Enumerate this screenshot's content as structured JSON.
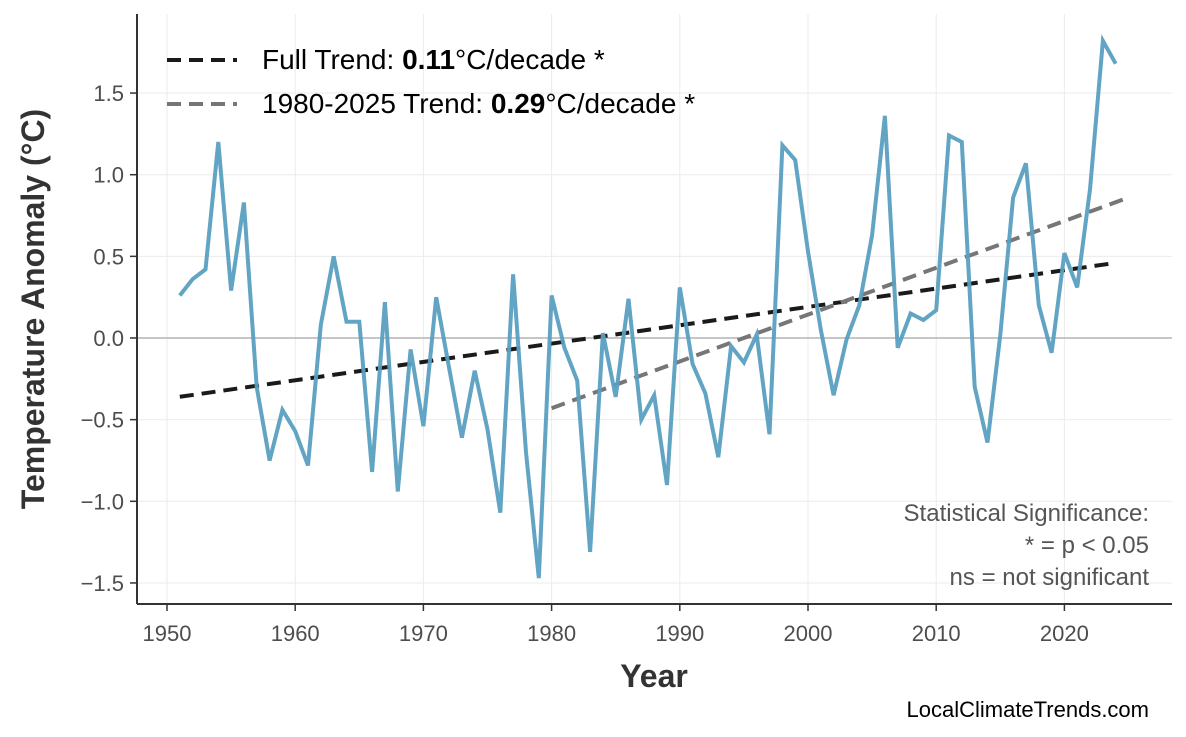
{
  "chart_data": {
    "type": "line",
    "xlabel": "Year",
    "ylabel": "Temperature Anomaly (°C)",
    "xlim": [
      1947,
      2029
    ],
    "ylim": [
      -1.63,
      2.0
    ],
    "xticks": [
      1950,
      1960,
      1970,
      1980,
      1990,
      2000,
      2010,
      2020
    ],
    "yticks": [
      -1.5,
      -1.0,
      -0.5,
      0.0,
      0.5,
      1.0,
      1.5
    ],
    "ytick_labels": [
      "−1.5",
      "−1.0",
      "−0.5",
      "0.0",
      "0.5",
      "1.0",
      "1.5"
    ],
    "grid": true,
    "zero_line": true,
    "series": [
      {
        "color": "#5a9fc0",
        "x": [
          1951,
          1952,
          1953,
          1954,
          1955,
          1956,
          1957,
          1958,
          1959,
          1960,
          1961,
          1962,
          1963,
          1964,
          1965,
          1966,
          1967,
          1968,
          1969,
          1970,
          1971,
          1972,
          1973,
          1974,
          1975,
          1976,
          1977,
          1978,
          1979,
          1980,
          1981,
          1982,
          1983,
          1984,
          1985,
          1986,
          1987,
          1988,
          1989,
          1990,
          1991,
          1992,
          1993,
          1994,
          1995,
          1996,
          1997,
          1998,
          1999,
          2000,
          2001,
          2002,
          2003,
          2004,
          2005,
          2006,
          2007,
          2008,
          2009,
          2010,
          2011,
          2012,
          2013,
          2014,
          2015,
          2016,
          2017,
          2018,
          2019,
          2020,
          2021,
          2022,
          2023,
          2024
        ],
        "y": [
          0.26,
          0.36,
          0.42,
          1.2,
          0.29,
          0.83,
          -0.3,
          -0.75,
          -0.44,
          -0.57,
          -0.78,
          0.08,
          0.5,
          0.1,
          0.1,
          -0.82,
          0.22,
          -0.94,
          -0.07,
          -0.54,
          0.25,
          -0.18,
          -0.61,
          -0.2,
          -0.56,
          -1.07,
          0.39,
          -0.7,
          -1.47,
          0.26,
          -0.06,
          -0.26,
          -1.31,
          0.03,
          -0.36,
          0.24,
          -0.5,
          -0.35,
          -0.9,
          0.31,
          -0.16,
          -0.34,
          -0.73,
          -0.05,
          -0.15,
          0.02,
          -0.59,
          1.18,
          1.09,
          0.53,
          0.05,
          -0.35,
          -0.01,
          0.2,
          0.63,
          1.36,
          -0.06,
          0.15,
          0.11,
          0.17,
          1.24,
          1.2,
          -0.3,
          -0.64,
          0.02,
          0.86,
          1.07,
          0.2,
          -0.09,
          0.52,
          0.31,
          0.91,
          1.82,
          1.68
        ]
      }
    ],
    "trends": [
      {
        "name": "Full Trend",
        "value": "0.11",
        "unit": "°C/decade",
        "sig": "*",
        "color": "#1a1a1a",
        "x": [
          1951,
          2024
        ],
        "y": [
          -0.36,
          0.46
        ]
      },
      {
        "name": "1980-2025 Trend",
        "value": "0.29",
        "unit": "°C/decade",
        "sig": "*",
        "color": "#767676",
        "x": [
          1980,
          2025
        ],
        "y": [
          -0.43,
          0.86
        ]
      }
    ],
    "legend_placement": "top-left",
    "annotation": [
      "Statistical Significance:",
      "* = p < 0.05",
      "ns = not significant"
    ],
    "watermark": "LocalClimateTrends.com"
  }
}
